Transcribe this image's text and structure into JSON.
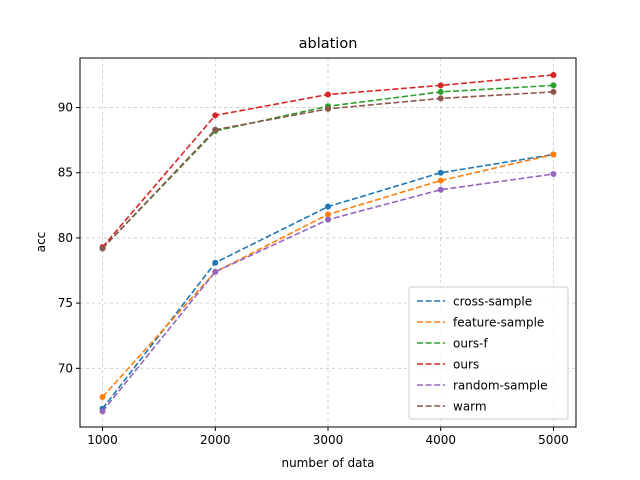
{
  "chart_data": {
    "type": "line",
    "title": "ablation",
    "xlabel": "number of data",
    "ylabel": "acc",
    "x": [
      1000,
      2000,
      3000,
      4000,
      5000
    ],
    "xlim": [
      800,
      5200
    ],
    "ylim": [
      65.5,
      93.8
    ],
    "xticks": [
      1000,
      2000,
      3000,
      4000,
      5000
    ],
    "yticks": [
      70,
      75,
      80,
      85,
      90
    ],
    "grid": true,
    "legend_position": "lower-right",
    "series": [
      {
        "name": "cross-sample",
        "color": "#1f77b4",
        "values": [
          66.9,
          78.1,
          82.4,
          85.0,
          86.4
        ]
      },
      {
        "name": "feature-sample",
        "color": "#ff7f0e",
        "values": [
          67.8,
          77.4,
          81.8,
          84.4,
          86.4
        ]
      },
      {
        "name": "ours-f",
        "color": "#2ca02c",
        "values": [
          79.2,
          88.2,
          90.1,
          91.2,
          91.7
        ]
      },
      {
        "name": "ours",
        "color": "#d62728",
        "values": [
          79.3,
          89.4,
          91.0,
          91.7,
          92.5
        ]
      },
      {
        "name": "random-sample",
        "color": "#9467bd",
        "values": [
          66.7,
          77.4,
          81.4,
          83.7,
          84.9
        ]
      },
      {
        "name": "warm",
        "color": "#8c564b",
        "values": [
          79.2,
          88.3,
          89.9,
          90.7,
          91.2
        ]
      }
    ]
  }
}
